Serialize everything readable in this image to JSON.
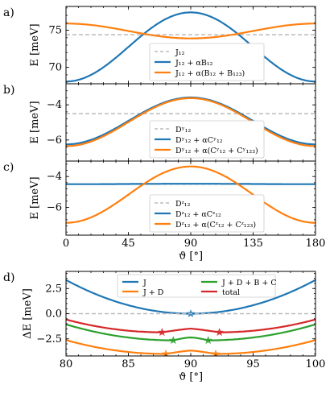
{
  "colors": {
    "blue": "#1f77b4",
    "orange": "#ff7f0e",
    "green": "#2ca02c",
    "red": "#d62728",
    "grey": "#bbbbbb"
  },
  "chart_data": [
    {
      "panel": "a)",
      "type": "line",
      "ylabel": "E [meV]",
      "xlim": [
        0,
        180
      ],
      "ylim": [
        67.8,
        78.2
      ],
      "yticks": [
        70,
        75
      ],
      "xticks": [
        0,
        45,
        90,
        135,
        180
      ],
      "xtick_labels_shown": false,
      "legend": "bottom-center",
      "series": [
        {
          "name": "J12",
          "label": "J₁₂",
          "style": "dashed",
          "color": "grey",
          "x": [
            0,
            180
          ],
          "y": [
            74.4,
            74.4
          ]
        },
        {
          "name": "J12 + αB12",
          "label": "J₁₂ + αB₁₂",
          "color": "blue",
          "baseline": 68.1,
          "peak": 77.4,
          "shape": "sin2"
        },
        {
          "name": "J12 + α(B12 + B123)",
          "label": "J₁₂ + α(B₁₂ + B₁₂₃)",
          "color": "orange",
          "baseline": 75.9,
          "peak": 73.9,
          "shape": "sin2"
        }
      ]
    },
    {
      "panel": "b)",
      "type": "line",
      "ylabel": "E [meV]",
      "xlim": [
        0,
        180
      ],
      "ylim": [
        -7.2,
        -2.8
      ],
      "yticks": [
        -6,
        -4
      ],
      "xticks": [
        0,
        45,
        90,
        135,
        180
      ],
      "xtick_labels_shown": false,
      "legend": "bottom-center",
      "series": [
        {
          "name": "D^y_12",
          "label": "Dʸ₁₂",
          "style": "dashed",
          "color": "grey",
          "x": [
            0,
            180
          ],
          "y": [
            -4.5,
            -4.5
          ]
        },
        {
          "name": "D^y_12 + αC^y_12",
          "label": "Dʸ₁₂ + αCʸ₁₂",
          "color": "blue",
          "baseline": -6.25,
          "peak": -3.58,
          "shape": "sin2"
        },
        {
          "name": "D^y_12 + α(C^y_12 + C^y_123)",
          "label": "Dʸ₁₂ + α(Cʸ₁₂ + Cʸ₁₂₃)",
          "color": "orange",
          "baseline": -6.35,
          "peak": -3.62,
          "shape": "sin2"
        }
      ]
    },
    {
      "panel": "c)",
      "type": "line",
      "ylabel": "E [meV]",
      "xlabel": "ϑ [°]",
      "xlim": [
        0,
        180
      ],
      "ylim": [
        -7.8,
        -3.0
      ],
      "yticks": [
        -6,
        -4
      ],
      "xticks": [
        0,
        45,
        90,
        135,
        180
      ],
      "xtick_labels_shown": true,
      "legend": "bottom-center",
      "series": [
        {
          "name": "D^z_12",
          "label": "Dᶻ₁₂",
          "style": "dashed",
          "color": "grey",
          "x": [
            0,
            180
          ],
          "y": [
            -4.5,
            -4.5
          ]
        },
        {
          "name": "D^z_12 + αC^z_12",
          "label": "Dᶻ₁₂ + αCᶻ₁₂",
          "color": "blue",
          "baseline": -4.5,
          "peak": -4.47,
          "shape": "sin2"
        },
        {
          "name": "D^z_12 + α(C^z_12 + C^z_123)",
          "label": "Dᶻ₁₂ + α(Cᶻ₁₂ + Cᶻ₁₂₃)",
          "color": "orange",
          "baseline": -7.0,
          "peak": -3.35,
          "shape": "sin2"
        }
      ]
    },
    {
      "panel": "d)",
      "type": "line",
      "ylabel": "ΔE [meV]",
      "xlabel": "ϑ [°]",
      "xlim": [
        80,
        100
      ],
      "ylim": [
        -4.2,
        4.2
      ],
      "yticks": [
        -2.5,
        0.0,
        2.5
      ],
      "ytick_labels": [
        "−2.5",
        "0.0",
        "2.5"
      ],
      "xticks": [
        80,
        85,
        90,
        95,
        100
      ],
      "legend": "top-center",
      "series": [
        {
          "name": "J",
          "label": "J",
          "color": "blue",
          "curve": {
            "center": 90,
            "k": 0.0335,
            "offset": 0.0
          },
          "minima": [
            [
              90,
              0.0
            ]
          ]
        },
        {
          "name": "J + D",
          "label": "J + D",
          "color": "orange",
          "curve": {
            "k": 0.0215,
            "wells": [
              88.0,
              92.0
            ],
            "offset": -4.0
          },
          "minima": [
            [
              88.0,
              -4.0
            ],
            [
              92.0,
              -4.0
            ]
          ]
        },
        {
          "name": "J + D + B + C",
          "label": "J + D + B + C",
          "color": "green",
          "curve": {
            "k": 0.0215,
            "wells": [
              88.6,
              91.4
            ],
            "offset": -2.65
          },
          "minima": [
            [
              88.6,
              -2.65
            ],
            [
              91.4,
              -2.65
            ]
          ]
        },
        {
          "name": "total",
          "label": "total",
          "color": "red",
          "curve": {
            "k": 0.0215,
            "wells": [
              87.7,
              92.3
            ],
            "offset": -1.85
          },
          "minima": [
            [
              87.7,
              -1.85
            ],
            [
              92.3,
              -1.85
            ]
          ]
        }
      ],
      "reference_line": {
        "y": 0.0,
        "style": "dashed",
        "color": "grey"
      }
    }
  ]
}
